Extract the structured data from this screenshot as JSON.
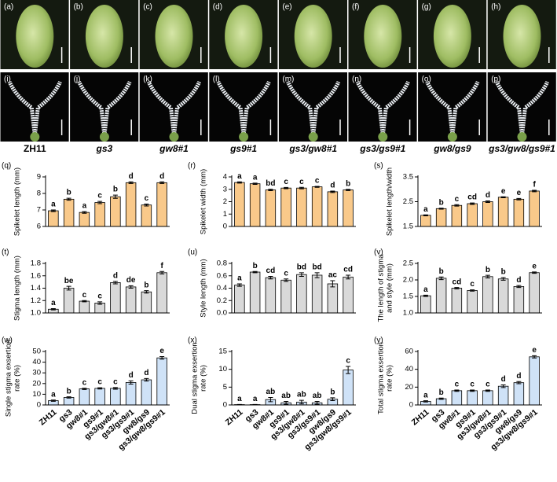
{
  "photo_labels": [
    "(a)",
    "(b)",
    "(c)",
    "(d)",
    "(e)",
    "(f)",
    "(g)",
    "(h)",
    "(i)",
    "(j)",
    "(k)",
    "(l)",
    "(m)",
    "(n)",
    "(o)",
    "(p)"
  ],
  "genotypes": [
    "ZH11",
    "gs3",
    "gw8#1",
    "gs9#1",
    "gs3/gw8#1",
    "gs3/gs9#1",
    "gw8/gs9",
    "gs3/gw8/gs9#1"
  ],
  "chart_data": [
    {
      "type": "bar",
      "panel": "(q)",
      "ylabel": [
        "Spikelet length (mm)"
      ],
      "categories": [
        null,
        null,
        null,
        null,
        null,
        null,
        null,
        null
      ],
      "values": [
        6.95,
        7.65,
        6.85,
        7.45,
        7.8,
        8.65,
        7.3,
        8.65
      ],
      "errors": [
        0.05,
        0.06,
        0.05,
        0.07,
        0.1,
        0.05,
        0.06,
        0.05
      ],
      "annotations": [
        "a",
        "b",
        "a",
        "c",
        "b",
        "d",
        "c",
        "d"
      ],
      "color": "#f9c98a",
      "ylim": [
        6,
        9
      ],
      "yticks": [
        6,
        7,
        8,
        9
      ]
    },
    {
      "type": "bar",
      "panel": "(r)",
      "ylabel": [
        "Spikelet width (mm)"
      ],
      "categories": [
        null,
        null,
        null,
        null,
        null,
        null,
        null,
        null
      ],
      "values": [
        3.55,
        3.45,
        2.95,
        3.1,
        3.1,
        3.2,
        2.8,
        2.95
      ],
      "errors": [
        0.05,
        0.05,
        0.06,
        0.05,
        0.06,
        0.04,
        0.06,
        0.05
      ],
      "annotations": [
        "a",
        "a",
        "bd",
        "c",
        "c",
        "c",
        "d",
        "b"
      ],
      "color": "#f9c98a",
      "ylim": [
        0,
        4
      ],
      "yticks": [
        0,
        1,
        2,
        3,
        4
      ]
    },
    {
      "type": "bar",
      "panel": "(s)",
      "ylabel": [
        "Spikelet length/width"
      ],
      "categories": [
        null,
        null,
        null,
        null,
        null,
        null,
        null,
        null
      ],
      "values": [
        1.95,
        2.22,
        2.35,
        2.42,
        2.5,
        2.68,
        2.6,
        2.93
      ],
      "errors": [
        0.02,
        0.02,
        0.03,
        0.03,
        0.03,
        0.02,
        0.03,
        0.03
      ],
      "annotations": [
        "a",
        "b",
        "c",
        "cd",
        "d",
        "e",
        "e",
        "f"
      ],
      "color": "#f9c98a",
      "ylim": [
        1.5,
        3.5
      ],
      "yticks": [
        1.5,
        2.5,
        3.5
      ]
    },
    {
      "type": "bar",
      "panel": "(t)",
      "ylabel": [
        "Stigma length (mm)"
      ],
      "categories": [
        null,
        null,
        null,
        null,
        null,
        null,
        null,
        null
      ],
      "values": [
        1.06,
        1.4,
        1.19,
        1.16,
        1.49,
        1.42,
        1.34,
        1.65
      ],
      "errors": [
        0.01,
        0.03,
        0.01,
        0.02,
        0.02,
        0.02,
        0.02,
        0.02
      ],
      "annotations": [
        "a",
        "be",
        "c",
        "c",
        "d",
        "de",
        "b",
        "f"
      ],
      "color": "#d9d9d9",
      "ylim": [
        1,
        1.8
      ],
      "yticks": [
        {
          "value": 1,
          "label": "1.0"
        },
        1.2,
        1.4,
        1.6,
        1.8
      ]
    },
    {
      "type": "bar",
      "panel": "(u)",
      "ylabel": [
        "Style length (mm)"
      ],
      "categories": [
        null,
        null,
        null,
        null,
        null,
        null,
        null,
        null
      ],
      "values": [
        0.45,
        0.66,
        0.57,
        0.53,
        0.62,
        0.61,
        0.47,
        0.58
      ],
      "errors": [
        0.02,
        0.01,
        0.02,
        0.02,
        0.03,
        0.04,
        0.05,
        0.03
      ],
      "annotations": [
        "a",
        "b",
        "cd",
        "c",
        "bd",
        "bd",
        "ac",
        "cd"
      ],
      "color": "#d9d9d9",
      "ylim": [
        0,
        0.8
      ],
      "yticks": [
        {
          "value": 0,
          "label": "0.0"
        },
        0.2,
        0.4,
        0.6,
        0.8
      ]
    },
    {
      "type": "bar",
      "panel": "(v)",
      "ylabel": [
        "The length of stigma",
        "and style (mm)"
      ],
      "categories": [
        null,
        null,
        null,
        null,
        null,
        null,
        null,
        null
      ],
      "values": [
        1.52,
        2.05,
        1.75,
        1.68,
        2.1,
        2.03,
        1.8,
        2.22
      ],
      "errors": [
        0.02,
        0.04,
        0.02,
        0.02,
        0.04,
        0.04,
        0.03,
        0.02
      ],
      "annotations": [
        "a",
        "b",
        "cd",
        "c",
        "b",
        "b",
        "d",
        "e"
      ],
      "color": "#d9d9d9",
      "ylim": [
        1,
        2.5
      ],
      "yticks": [
        {
          "value": 1,
          "label": "1.0"
        },
        1.5,
        {
          "value": 2,
          "label": "2.0"
        },
        2.5
      ]
    },
    {
      "type": "bar",
      "panel": "(w)",
      "ylabel": [
        "Single stigma exsertion",
        "rate (%)"
      ],
      "categories": [
        "ZH11",
        "gs3",
        "gw8#1",
        "gs9#1",
        "gs3/gw8#1",
        "gs3/gs9#1",
        "gw8/gs9",
        "gs3/gw8/gs9#1"
      ],
      "values": [
        4,
        7,
        15,
        15.5,
        15.5,
        21,
        23.5,
        44
      ],
      "errors": [
        0.6,
        0.6,
        0.6,
        0.6,
        0.8,
        1.5,
        1.2,
        1.2
      ],
      "annotations": [
        "a",
        "b",
        "c",
        "c",
        "c",
        "d",
        "d",
        "e"
      ],
      "color": "#cfe2f7",
      "ylim": [
        0,
        50
      ],
      "yticks": [
        0,
        10,
        20,
        30,
        40,
        50
      ]
    },
    {
      "type": "bar",
      "panel": "(x)",
      "ylabel": [
        "Dual stigma exsertion",
        "rate (%)"
      ],
      "categories": [
        "ZH11",
        "gs3",
        "gw8#1",
        "gs9#1",
        "gs3/gw8#1",
        "gs3/gs9#1",
        "gw8/gs9",
        "gs3/gw8/gs9#1"
      ],
      "values": [
        0.1,
        0.1,
        1.5,
        0.6,
        0.8,
        0.6,
        1.6,
        9.8
      ],
      "errors": [
        0.05,
        0.05,
        0.6,
        0.4,
        0.5,
        0.4,
        0.4,
        1
      ],
      "annotations": [
        "a",
        "a",
        "ab",
        "ab",
        "ab",
        "ab",
        "b",
        "c"
      ],
      "color": "#cfe2f7",
      "ylim": [
        0,
        15
      ],
      "yticks": [
        0,
        5,
        10,
        15
      ]
    },
    {
      "type": "bar",
      "panel": "(y)",
      "ylabel": [
        "Total stigma exsertion",
        "rate (%)"
      ],
      "categories": [
        "ZH11",
        "gs3",
        "gw8#1",
        "gs9#1",
        "gs3/gw8#1",
        "gs3/gs9#1",
        "gw8/gs9",
        "gs3/gw8/gs9#1"
      ],
      "values": [
        4,
        7,
        16,
        16,
        16,
        21,
        25,
        54
      ],
      "errors": [
        0.7,
        0.7,
        0.8,
        0.8,
        0.8,
        1.5,
        1.2,
        1.3
      ],
      "annotations": [
        "a",
        "b",
        "c",
        "c",
        "c",
        "d",
        "d",
        "e"
      ],
      "color": "#cfe2f7",
      "ylim": [
        0,
        60
      ],
      "yticks": [
        0,
        20,
        40,
        60
      ]
    }
  ]
}
